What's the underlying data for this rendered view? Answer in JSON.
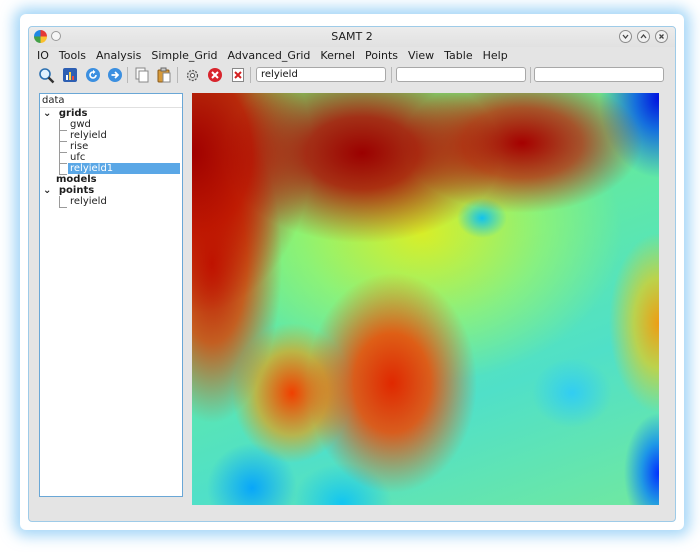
{
  "window": {
    "title": "SAMT 2",
    "controls": [
      "chevron-down-icon",
      "chevron-up-icon",
      "close-icon"
    ]
  },
  "menu": [
    "IO",
    "Tools",
    "Analysis",
    "Simple_Grid",
    "Advanced_Grid",
    "Kernel",
    "Points",
    "View",
    "Table",
    "Help"
  ],
  "toolbar": {
    "buttons": [
      "zoom-icon",
      "chart-icon",
      "refresh-icon",
      "forward-icon",
      "copy-icon",
      "paste-icon",
      "settings-icon",
      "stop-icon",
      "delete-icon"
    ],
    "field1_value": "relyield",
    "field2_value": "",
    "field3_value": ""
  },
  "tree": {
    "header": "data",
    "groups": [
      {
        "label": "grids",
        "children": [
          "gwd",
          "relyield",
          "rise",
          "ufc",
          "relyield1"
        ]
      },
      {
        "label": "models",
        "children": []
      },
      {
        "label": "points",
        "children": [
          "relyield"
        ]
      }
    ],
    "selected": "relyield1"
  },
  "colors": {
    "selection": "#5aa7e6",
    "window_glow": "#5ab4f0",
    "colormap": [
      "#9b0000",
      "#ff0000",
      "#ff8c00",
      "#ffff00",
      "#80ff60",
      "#40e0d0",
      "#00b0ff",
      "#0010e0"
    ]
  }
}
